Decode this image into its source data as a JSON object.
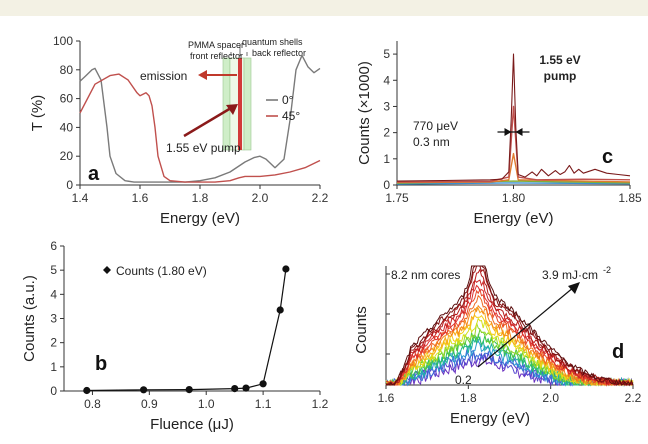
{
  "chart_data": [
    {
      "type": "line",
      "panel_label": "a",
      "xlabel": "Energy (eV)",
      "ylabel": "T (%)",
      "xlim": [
        1.4,
        2.2
      ],
      "ylim": [
        0,
        100
      ],
      "xticks": [
        "1.4",
        "1.6",
        "1.8",
        "2.0",
        "2.2"
      ],
      "yticks": [
        "0",
        "20",
        "40",
        "60",
        "80",
        "100"
      ],
      "legend": {
        "position": "center-right",
        "entries": [
          "0°",
          "45°"
        ]
      },
      "annotations": {
        "pmma_spacer": "PMMA spacer",
        "front_reflector": "front reflector",
        "quantum_shells": "quantum shells",
        "back_reflector": "back reflector",
        "emission": "emission",
        "pump": "1.55 eV pump"
      },
      "series": [
        {
          "name": "0°",
          "color": "#7a7a7a",
          "x": [
            1.4,
            1.42,
            1.44,
            1.45,
            1.47,
            1.49,
            1.5,
            1.52,
            1.55,
            1.58,
            1.6,
            1.62,
            1.65,
            1.7,
            1.75,
            1.8,
            1.85,
            1.9,
            1.95,
            1.98,
            2.0,
            2.02,
            2.05,
            2.08,
            2.1,
            2.12,
            2.14,
            2.16,
            2.18,
            2.2
          ],
          "y": [
            72,
            76,
            80,
            81,
            73,
            40,
            20,
            8,
            3,
            2,
            2,
            2,
            2,
            2,
            2,
            3,
            5,
            9,
            16,
            19,
            20,
            18,
            12,
            18,
            45,
            80,
            90,
            82,
            78,
            81
          ]
        },
        {
          "name": "45°",
          "color": "#c0504d",
          "x": [
            1.4,
            1.45,
            1.5,
            1.53,
            1.56,
            1.59,
            1.6,
            1.62,
            1.63,
            1.64,
            1.65,
            1.66,
            1.68,
            1.7,
            1.75,
            1.8,
            1.85,
            1.9,
            1.93,
            1.95,
            2.0,
            2.05,
            2.1,
            2.15,
            2.2
          ],
          "y": [
            50,
            70,
            76,
            77,
            73,
            64,
            62,
            64,
            62,
            55,
            40,
            20,
            6,
            3,
            2,
            2,
            2,
            3,
            5,
            6,
            6,
            7,
            9,
            12,
            17
          ]
        }
      ]
    },
    {
      "type": "line",
      "panel_label": "c",
      "xlabel": "Energy (eV)",
      "ylabel": "Counts (×1000)",
      "xlim": [
        1.75,
        1.85
      ],
      "ylim": [
        0,
        5.5
      ],
      "xticks": [
        "1.75",
        "1.80",
        "1.85"
      ],
      "yticks": [
        "0",
        "1",
        "2",
        "3",
        "4",
        "5"
      ],
      "annotations": {
        "pump_line1": "1.55 eV",
        "pump_line2": "pump",
        "linewidth_energy": "770 μeV",
        "linewidth_nm": "0.3 nm"
      },
      "series": [
        {
          "color": "#7a1a1a",
          "x": [
            1.75,
            1.77,
            1.79,
            1.795,
            1.798,
            1.799,
            1.8,
            1.801,
            1.802,
            1.805,
            1.808,
            1.81,
            1.812,
            1.815,
            1.818,
            1.82,
            1.822,
            1.824,
            1.826,
            1.828,
            1.83,
            1.835,
            1.84,
            1.845,
            1.85
          ],
          "y": [
            0.15,
            0.17,
            0.2,
            0.22,
            0.5,
            2.5,
            5.0,
            2.2,
            0.4,
            0.3,
            0.5,
            0.35,
            0.6,
            0.35,
            0.55,
            0.4,
            0.5,
            0.75,
            0.45,
            0.6,
            0.45,
            0.6,
            0.45,
            0.4,
            0.35
          ]
        },
        {
          "color": "#c0504d",
          "x": [
            1.75,
            1.79,
            1.798,
            1.8,
            1.802,
            1.81,
            1.83,
            1.85
          ],
          "y": [
            0.12,
            0.14,
            0.3,
            3.0,
            0.3,
            0.2,
            0.22,
            0.2
          ]
        },
        {
          "color": "#e07a30",
          "x": [
            1.75,
            1.79,
            1.798,
            1.8,
            1.802,
            1.85
          ],
          "y": [
            0.1,
            0.11,
            0.2,
            1.2,
            0.2,
            0.12
          ]
        },
        {
          "color": "#7fae3a",
          "x": [
            1.75,
            1.8,
            1.85
          ],
          "y": [
            0.07,
            0.15,
            0.08
          ]
        },
        {
          "color": "#3a8fd0",
          "x": [
            1.75,
            1.8,
            1.85
          ],
          "y": [
            0.04,
            0.08,
            0.05
          ]
        }
      ]
    },
    {
      "type": "line",
      "panel_label": "b",
      "xlabel": "Fluence (μJ)",
      "ylabel": "Counts (a.u.)",
      "xlim": [
        0.75,
        1.2
      ],
      "ylim": [
        0,
        6
      ],
      "xticks": [
        "0.8",
        "0.9",
        "1.0",
        "1.1",
        "1.2"
      ],
      "yticks": [
        "0",
        "1",
        "2",
        "3",
        "4",
        "5",
        "6"
      ],
      "legend": {
        "position": "top-left",
        "entries": [
          "Counts (1.80 eV)"
        ]
      },
      "series": [
        {
          "name": "Counts (1.80 eV)",
          "color": "#111111",
          "x": [
            0.79,
            0.89,
            0.97,
            1.05,
            1.07,
            1.1,
            1.13,
            1.14
          ],
          "y": [
            0.02,
            0.05,
            0.06,
            0.1,
            0.12,
            0.3,
            3.35,
            5.05
          ]
        }
      ]
    },
    {
      "type": "line",
      "panel_label": "d",
      "xlabel": "Energy (eV)",
      "ylabel": "Counts",
      "xlim": [
        1.6,
        2.2
      ],
      "xticks": [
        "1.6",
        "1.8",
        "2.0",
        "2.2"
      ],
      "annotations": {
        "cores": "8.2 nm cores",
        "fluence_high": "3.9 mJ·cm",
        "fluence_exp": "-2",
        "fluence_low": "0.2"
      },
      "colors": [
        "#5b0f0f",
        "#7d1212",
        "#9c1616",
        "#b81c1c",
        "#cc2626",
        "#dd3030",
        "#e84a2a",
        "#ef6a22",
        "#f48a1c",
        "#f8ab18",
        "#f4cf1a",
        "#d6e21e",
        "#9bd82a",
        "#5bca35",
        "#2fbf62",
        "#21b3a1",
        "#2b98d3",
        "#3a6fd6",
        "#5447cf",
        "#6a2fc0"
      ]
    }
  ]
}
